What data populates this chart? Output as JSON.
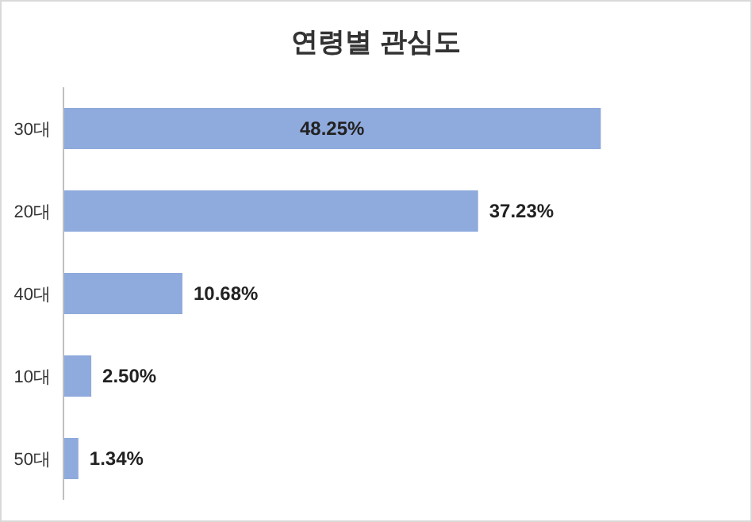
{
  "chart_data": {
    "type": "bar",
    "orientation": "horizontal",
    "title": "연령별 관심도",
    "categories": [
      "30대",
      "20대",
      "40대",
      "10대",
      "50대"
    ],
    "values": [
      48.25,
      37.23,
      10.68,
      2.5,
      1.34
    ],
    "value_labels": [
      "48.25%",
      "37.23%",
      "10.68%",
      "2.50%",
      "1.34%"
    ],
    "color": "#8faadc"
  }
}
